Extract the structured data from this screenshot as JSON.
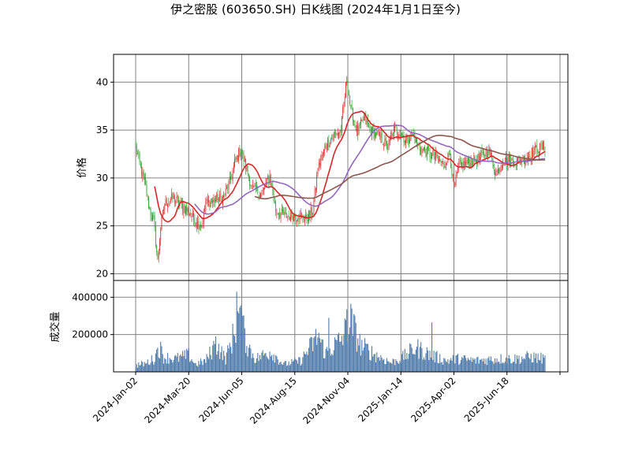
{
  "chart_data": {
    "type": "candlestick",
    "title": "伊之密股 (603650.SH) 日K线图 (2024年1月1日至今)",
    "price_panel": {
      "ylabel": "价格",
      "ylim": [
        19.3,
        42.9
      ],
      "yticks": [
        "20",
        "25",
        "30",
        "35",
        "40"
      ],
      "grid": true
    },
    "volume_panel": {
      "ylabel": "成交量",
      "ylim": [
        0,
        490000
      ],
      "yticks": [
        "200000",
        "400000"
      ],
      "grid": true
    },
    "xticks": [
      "2024-Jan-02",
      "2024-Mar-20",
      "2024-Jun-05",
      "2024-Aug-15",
      "2024-Nov-04",
      "2025-Jan-14",
      "2025-Apr-02",
      "2025-Jun-18"
    ],
    "x_tick_index": [
      0,
      53,
      106,
      159,
      212,
      265,
      318,
      371
    ],
    "n_bars": 410,
    "price_anchors": [
      [
        0,
        33.2
      ],
      [
        4,
        31.4
      ],
      [
        10,
        29.0
      ],
      [
        14,
        26.6
      ],
      [
        18,
        25.5
      ],
      [
        22,
        21.2
      ],
      [
        25,
        25.0
      ],
      [
        29,
        27.4
      ],
      [
        38,
        27.9
      ],
      [
        46,
        27.1
      ],
      [
        53,
        26.5
      ],
      [
        60,
        25.4
      ],
      [
        66,
        25.1
      ],
      [
        70,
        27.3
      ],
      [
        78,
        27.7
      ],
      [
        88,
        28.0
      ],
      [
        95,
        29.8
      ],
      [
        99,
        31.6
      ],
      [
        105,
        33.0
      ],
      [
        110,
        31.2
      ],
      [
        116,
        29.0
      ],
      [
        126,
        28.3
      ],
      [
        134,
        30.2
      ],
      [
        140,
        26.6
      ],
      [
        150,
        26.0
      ],
      [
        160,
        26.1
      ],
      [
        170,
        25.7
      ],
      [
        177,
        26.6
      ],
      [
        182,
        30.9
      ],
      [
        190,
        33.4
      ],
      [
        198,
        34.4
      ],
      [
        205,
        35.0
      ],
      [
        211,
        40.4
      ],
      [
        215,
        37.0
      ],
      [
        222,
        34.7
      ],
      [
        228,
        36.2
      ],
      [
        236,
        34.8
      ],
      [
        245,
        34.2
      ],
      [
        252,
        33.2
      ],
      [
        258,
        35.0
      ],
      [
        264,
        34.8
      ],
      [
        270,
        33.9
      ],
      [
        276,
        34.6
      ],
      [
        284,
        33.1
      ],
      [
        292,
        32.6
      ],
      [
        300,
        32.1
      ],
      [
        308,
        31.3
      ],
      [
        314,
        32.6
      ],
      [
        318,
        28.8
      ],
      [
        323,
        31.3
      ],
      [
        333,
        31.6
      ],
      [
        343,
        32.0
      ],
      [
        353,
        32.9
      ],
      [
        360,
        30.4
      ],
      [
        367,
        31.9
      ],
      [
        380,
        31.7
      ],
      [
        392,
        32.3
      ],
      [
        402,
        33.1
      ],
      [
        409,
        33.2
      ]
    ],
    "volume_anchors": [
      [
        0,
        35000
      ],
      [
        10,
        45000
      ],
      [
        18,
        70000
      ],
      [
        24,
        130000
      ],
      [
        28,
        80000
      ],
      [
        40,
        70000
      ],
      [
        53,
        90000
      ],
      [
        60,
        40000
      ],
      [
        70,
        60000
      ],
      [
        80,
        150000
      ],
      [
        90,
        70000
      ],
      [
        98,
        200000
      ],
      [
        103,
        300000
      ],
      [
        112,
        140000
      ],
      [
        120,
        70000
      ],
      [
        135,
        110000
      ],
      [
        148,
        40000
      ],
      [
        165,
        60000
      ],
      [
        182,
        190000
      ],
      [
        190,
        100000
      ],
      [
        205,
        170000
      ],
      [
        215,
        270000
      ],
      [
        225,
        140000
      ],
      [
        240,
        90000
      ],
      [
        255,
        50000
      ],
      [
        265,
        70000
      ],
      [
        280,
        130000
      ],
      [
        295,
        90000
      ],
      [
        310,
        60000
      ],
      [
        320,
        70000
      ],
      [
        340,
        60000
      ],
      [
        360,
        70000
      ],
      [
        380,
        70000
      ],
      [
        395,
        80000
      ],
      [
        409,
        70000
      ]
    ],
    "volume_peaks": [
      [
        101,
        430000
      ],
      [
        104,
        345000
      ],
      [
        107,
        300000
      ],
      [
        211,
        335000
      ],
      [
        193,
        290000
      ],
      [
        296,
        265000
      ],
      [
        22,
        130000
      ],
      [
        80,
        190000
      ],
      [
        183,
        210000
      ]
    ],
    "ma_lines": [
      {
        "color": "#d62728",
        "window": 20
      },
      {
        "color": "#9467bd",
        "window": 60
      },
      {
        "color": "#8c564b",
        "window": 120
      }
    ],
    "colors": {
      "up": "#d62728",
      "down": "#2ca02c",
      "volume": "#4c78a8",
      "grid": "#808080"
    }
  }
}
